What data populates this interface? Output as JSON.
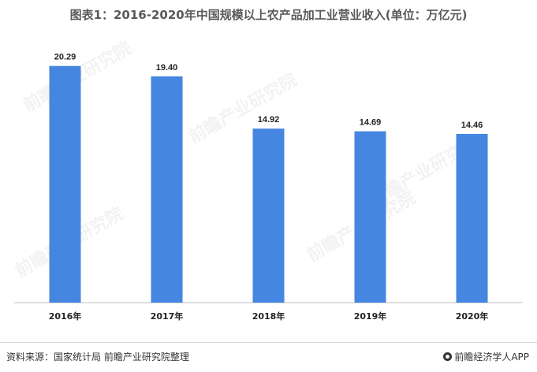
{
  "title": "图表1：2016-2020年中国规模以上农产品加工业营业收入(单位：万亿元)",
  "chart_data": {
    "type": "bar",
    "categories": [
      "2016年",
      "2017年",
      "2018年",
      "2019年",
      "2020年"
    ],
    "values": [
      20.29,
      19.4,
      14.92,
      14.69,
      14.46
    ],
    "data_labels": [
      "20.29",
      "19.40",
      "14.92",
      "14.69",
      "14.46"
    ],
    "title": "图表1：2016-2020年中国规模以上农产品加工业营业收入(单位：万亿元)",
    "xlabel": "",
    "ylabel": "",
    "ylim": [
      0,
      24
    ],
    "grid": false,
    "bar_color": "#4586E0"
  },
  "footer": {
    "source": "资料来源：国家统计局 前瞻产业研究院整理",
    "brand": "前瞻经济学人APP"
  },
  "watermark": "前瞻产业研究院"
}
